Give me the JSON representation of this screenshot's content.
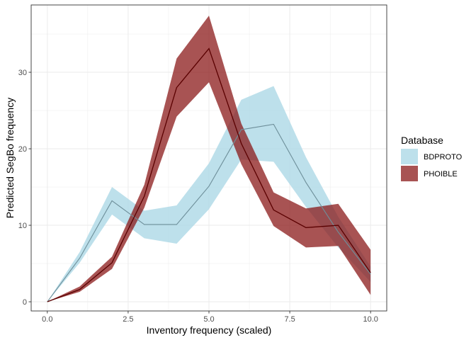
{
  "chart_data": {
    "type": "area",
    "xlabel": "Inventory frequency (scaled)",
    "ylabel": "Predicted SegBo frequency",
    "xlim": [
      -0.5,
      10.5
    ],
    "ylim": [
      -1.2,
      38.8
    ],
    "x_ticks": [
      0,
      2.5,
      5,
      7.5,
      10
    ],
    "x_tick_labels": [
      "0.0",
      "2.5",
      "5.0",
      "7.5",
      "10.0"
    ],
    "y_ticks": [
      0,
      10,
      20,
      30
    ],
    "y_tick_labels": [
      "0",
      "10",
      "20",
      "30"
    ],
    "grid": true,
    "legend": {
      "title": "Database",
      "position": "right"
    },
    "series": [
      {
        "name": "BDPROTO",
        "color": "#add8e6",
        "x": [
          0,
          1,
          2,
          3,
          4,
          5,
          6,
          7,
          8,
          9,
          10
        ],
        "values": [
          0,
          5.7,
          13.2,
          10.1,
          10.1,
          15.1,
          22.5,
          23.2,
          15.6,
          9.1,
          3.6
        ],
        "lower": [
          0,
          5.1,
          11.4,
          8.3,
          7.6,
          12.1,
          18.6,
          18.3,
          12.4,
          7.1,
          2.6
        ],
        "upper": [
          0,
          6.5,
          15.0,
          11.9,
          12.6,
          18.1,
          26.4,
          28.2,
          18.9,
          11.1,
          4.6
        ]
      },
      {
        "name": "PHOIBLE",
        "color": "#8b1a1a",
        "x": [
          0,
          1,
          2,
          3,
          4,
          5,
          6,
          7,
          8,
          9,
          10
        ],
        "values": [
          0,
          1.6,
          5.1,
          13.8,
          28.0,
          33.1,
          20.7,
          12.0,
          9.7,
          10.0,
          3.8
        ],
        "lower": [
          0,
          1.3,
          4.3,
          12.3,
          24.2,
          28.7,
          18.0,
          9.9,
          7.1,
          7.3,
          0.9
        ],
        "upper": [
          0,
          2.0,
          5.9,
          15.3,
          31.8,
          37.4,
          23.3,
          14.3,
          12.2,
          12.8,
          6.8
        ]
      }
    ]
  }
}
